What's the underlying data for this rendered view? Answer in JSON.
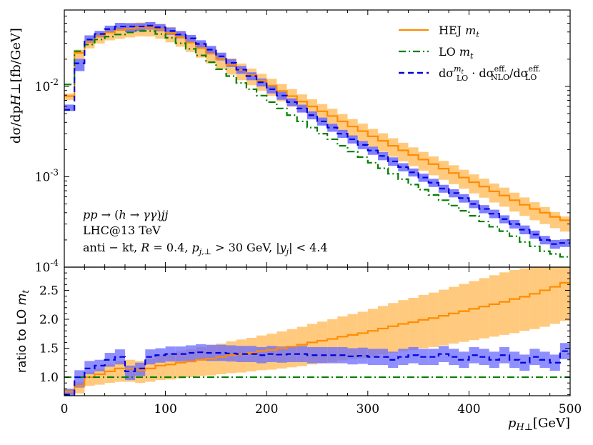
{
  "chart_data": {
    "type": "line",
    "x_bin_width": 10,
    "x": [
      0,
      10,
      20,
      30,
      40,
      50,
      60,
      70,
      80,
      90,
      100,
      110,
      120,
      130,
      140,
      150,
      160,
      170,
      180,
      190,
      200,
      210,
      220,
      230,
      240,
      250,
      260,
      270,
      280,
      290,
      300,
      310,
      320,
      330,
      340,
      350,
      360,
      370,
      380,
      390,
      400,
      410,
      420,
      430,
      440,
      450,
      460,
      470,
      480,
      490
    ],
    "xlim": [
      0,
      500
    ],
    "xticks": [
      0,
      100,
      200,
      300,
      400,
      500
    ],
    "xtick_labels": [
      "0",
      "100",
      "200",
      "300",
      "400",
      "500"
    ],
    "xlabel": "p_H⊥[GeV]",
    "top_panel": {
      "ylabel": "dσ/dp_H⊥[fb/GeV]",
      "yscale": "log",
      "ylim": [
        0.0001,
        0.07
      ],
      "ytick_labels": [
        "10^-4",
        "10^-3",
        "10^-2"
      ],
      "ytick_values": [
        0.0001,
        0.001,
        0.01
      ]
    },
    "bottom_panel": {
      "ylabel": "ratio to LO m_t",
      "ylim": [
        0.68,
        2.9
      ],
      "yticks": [
        1.0,
        1.5,
        2.0,
        2.5
      ],
      "ytick_labels": [
        "1.0",
        "1.5",
        "2.0",
        "2.5"
      ]
    },
    "series": [
      {
        "name": "HEJ m_t",
        "color": "#ff8c00",
        "band_color": "#ffb347",
        "linestyle": "solid",
        "values": [
          0.0078,
          0.0235,
          0.031,
          0.036,
          0.0395,
          0.042,
          0.0435,
          0.0445,
          0.0445,
          0.0425,
          0.039,
          0.035,
          0.0305,
          0.0265,
          0.023,
          0.02,
          0.0174,
          0.0152,
          0.0133,
          0.0116,
          0.0102,
          0.0089,
          0.0078,
          0.0068,
          0.006,
          0.0053,
          0.0047,
          0.0041,
          0.0036,
          0.0032,
          0.0028,
          0.0025,
          0.0022,
          0.00196,
          0.00174,
          0.00155,
          0.00138,
          0.00123,
          0.0011,
          0.00098,
          0.00087,
          0.00078,
          0.00069,
          0.00062,
          0.00055,
          0.00049,
          0.00044,
          0.0004,
          0.00036,
          0.00033
        ],
        "ratio": [
          0.75,
          0.85,
          1.0,
          1.05,
          1.1,
          1.15,
          1.15,
          1.12,
          1.15,
          1.2,
          1.22,
          1.25,
          1.27,
          1.3,
          1.32,
          1.35,
          1.38,
          1.4,
          1.42,
          1.45,
          1.47,
          1.5,
          1.53,
          1.56,
          1.6,
          1.63,
          1.66,
          1.7,
          1.73,
          1.76,
          1.8,
          1.84,
          1.88,
          1.92,
          1.95,
          1.99,
          2.02,
          2.06,
          2.1,
          2.14,
          2.18,
          2.22,
          2.26,
          2.3,
          2.35,
          2.39,
          2.44,
          2.5,
          2.56,
          2.63
        ],
        "ratio_band": [
          [
            0.68,
            0.8
          ],
          [
            0.72,
            0.92
          ],
          [
            0.85,
            1.1
          ],
          [
            0.87,
            1.15
          ],
          [
            0.9,
            1.22
          ],
          [
            0.92,
            1.28
          ],
          [
            0.92,
            1.3
          ],
          [
            0.9,
            1.28
          ],
          [
            0.92,
            1.32
          ],
          [
            0.95,
            1.38
          ],
          [
            0.96,
            1.42
          ],
          [
            0.98,
            1.45
          ],
          [
            1.0,
            1.48
          ],
          [
            1.02,
            1.52
          ],
          [
            1.03,
            1.55
          ],
          [
            1.05,
            1.58
          ],
          [
            1.07,
            1.62
          ],
          [
            1.08,
            1.65
          ],
          [
            1.1,
            1.68
          ],
          [
            1.12,
            1.72
          ],
          [
            1.13,
            1.75
          ],
          [
            1.15,
            1.79
          ],
          [
            1.17,
            1.83
          ],
          [
            1.19,
            1.87
          ],
          [
            1.22,
            1.92
          ],
          [
            1.24,
            1.96
          ],
          [
            1.26,
            2.0
          ],
          [
            1.29,
            2.05
          ],
          [
            1.31,
            2.09
          ],
          [
            1.33,
            2.13
          ],
          [
            1.36,
            2.18
          ],
          [
            1.39,
            2.23
          ],
          [
            1.42,
            2.28
          ],
          [
            1.45,
            2.33
          ],
          [
            1.47,
            2.37
          ],
          [
            1.5,
            2.42
          ],
          [
            1.52,
            2.46
          ],
          [
            1.55,
            2.51
          ],
          [
            1.58,
            2.56
          ],
          [
            1.61,
            2.61
          ],
          [
            1.64,
            2.66
          ],
          [
            1.67,
            2.71
          ],
          [
            1.7,
            2.76
          ],
          [
            1.73,
            2.81
          ],
          [
            1.76,
            2.85
          ],
          [
            1.8,
            2.88
          ],
          [
            1.83,
            2.9
          ],
          [
            1.87,
            2.9
          ],
          [
            1.92,
            2.9
          ],
          [
            1.97,
            2.9
          ]
        ]
      },
      {
        "name": "LO m_t",
        "color": "#008000",
        "linestyle": "dashdot",
        "values": [
          0.0105,
          0.0245,
          0.029,
          0.033,
          0.0355,
          0.0375,
          0.0395,
          0.041,
          0.041,
          0.038,
          0.0345,
          0.03,
          0.026,
          0.022,
          0.0185,
          0.0155,
          0.013,
          0.0109,
          0.0093,
          0.0079,
          0.0067,
          0.0057,
          0.0048,
          0.0041,
          0.0035,
          0.003,
          0.0026,
          0.0022,
          0.0019,
          0.00165,
          0.00143,
          0.00124,
          0.00108,
          0.00094,
          0.00082,
          0.00072,
          0.00063,
          0.00055,
          0.00048,
          0.00042,
          0.00037,
          0.00032,
          0.00028,
          0.00025,
          0.00022,
          0.00019,
          0.00017,
          0.00015,
          0.00014,
          0.00013
        ],
        "ratio": [
          1,
          1,
          1,
          1,
          1,
          1,
          1,
          1,
          1,
          1,
          1,
          1,
          1,
          1,
          1,
          1,
          1,
          1,
          1,
          1,
          1,
          1,
          1,
          1,
          1,
          1,
          1,
          1,
          1,
          1,
          1,
          1,
          1,
          1,
          1,
          1,
          1,
          1,
          1,
          1,
          1,
          1,
          1,
          1,
          1,
          1,
          1,
          1,
          1,
          1
        ]
      },
      {
        "name": "dσ^{m_t}_{LO} · dσ^{eff.}_{NLO}/dσ^{eff.}_{LO}",
        "color": "#0000dd",
        "band_color": "#6a6aff",
        "linestyle": "dashed",
        "values": [
          0.0055,
          0.018,
          0.033,
          0.038,
          0.043,
          0.046,
          0.046,
          0.046,
          0.047,
          0.045,
          0.041,
          0.0375,
          0.034,
          0.0295,
          0.0255,
          0.0215,
          0.0182,
          0.0153,
          0.013,
          0.0111,
          0.0093,
          0.0079,
          0.0067,
          0.0057,
          0.0048,
          0.0041,
          0.0035,
          0.003,
          0.0026,
          0.00225,
          0.00195,
          0.0017,
          0.00148,
          0.00128,
          0.00112,
          0.00098,
          0.00086,
          0.00074,
          0.00066,
          0.00058,
          0.0005,
          0.00044,
          0.00039,
          0.00034,
          0.0003,
          0.00026,
          0.00023,
          0.0002,
          0.00018,
          0.000185
        ],
        "ratio": [
          0.7,
          1.0,
          1.15,
          1.2,
          1.3,
          1.35,
          1.1,
          1.15,
          1.35,
          1.38,
          1.4,
          1.4,
          1.42,
          1.43,
          1.42,
          1.42,
          1.41,
          1.4,
          1.4,
          1.38,
          1.4,
          1.39,
          1.4,
          1.4,
          1.38,
          1.38,
          1.38,
          1.38,
          1.36,
          1.37,
          1.35,
          1.35,
          1.3,
          1.35,
          1.38,
          1.35,
          1.35,
          1.4,
          1.35,
          1.3,
          1.38,
          1.35,
          1.3,
          1.38,
          1.3,
          1.25,
          1.35,
          1.3,
          1.25,
          1.45
        ],
        "ratio_band": [
          [
            0.68,
            0.8
          ],
          [
            0.82,
            1.12
          ],
          [
            1.05,
            1.28
          ],
          [
            1.1,
            1.3
          ],
          [
            1.18,
            1.42
          ],
          [
            1.22,
            1.48
          ],
          [
            0.95,
            1.2
          ],
          [
            1.02,
            1.25
          ],
          [
            1.22,
            1.48
          ],
          [
            1.25,
            1.5
          ],
          [
            1.27,
            1.53
          ],
          [
            1.27,
            1.53
          ],
          [
            1.28,
            1.55
          ],
          [
            1.29,
            1.57
          ],
          [
            1.28,
            1.56
          ],
          [
            1.28,
            1.56
          ],
          [
            1.27,
            1.55
          ],
          [
            1.26,
            1.54
          ],
          [
            1.26,
            1.54
          ],
          [
            1.24,
            1.52
          ],
          [
            1.26,
            1.54
          ],
          [
            1.25,
            1.53
          ],
          [
            1.26,
            1.54
          ],
          [
            1.26,
            1.54
          ],
          [
            1.24,
            1.52
          ],
          [
            1.24,
            1.52
          ],
          [
            1.24,
            1.52
          ],
          [
            1.24,
            1.52
          ],
          [
            1.22,
            1.5
          ],
          [
            1.23,
            1.51
          ],
          [
            1.21,
            1.49
          ],
          [
            1.21,
            1.49
          ],
          [
            1.16,
            1.44
          ],
          [
            1.21,
            1.49
          ],
          [
            1.24,
            1.52
          ],
          [
            1.21,
            1.49
          ],
          [
            1.21,
            1.49
          ],
          [
            1.26,
            1.54
          ],
          [
            1.21,
            1.49
          ],
          [
            1.16,
            1.44
          ],
          [
            1.24,
            1.52
          ],
          [
            1.21,
            1.49
          ],
          [
            1.16,
            1.44
          ],
          [
            1.24,
            1.52
          ],
          [
            1.16,
            1.44
          ],
          [
            1.11,
            1.39
          ],
          [
            1.21,
            1.49
          ],
          [
            1.16,
            1.44
          ],
          [
            1.11,
            1.39
          ],
          [
            1.31,
            1.59
          ]
        ]
      }
    ],
    "annotations": [
      "pp → (h → γγ)jj",
      "LHC@13 TeV",
      "anti − kt, R = 0.4, p_j,⊥ > 30 GeV, |y_j| < 4.4"
    ],
    "legend_position": "top-right"
  }
}
